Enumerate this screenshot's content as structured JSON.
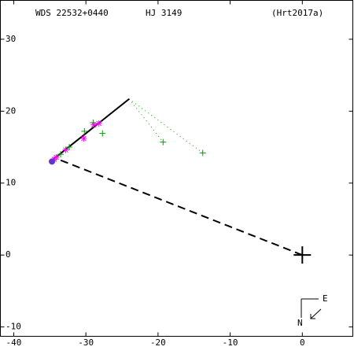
{
  "chart_data": {
    "type": "scatter",
    "title": "WDS 22532+0440",
    "subtitle": "HJ 3149",
    "reference": "(Hrt2017a)",
    "xlim": [
      -41.85,
      7
    ],
    "ylim": [
      -11.3,
      35.4
    ],
    "xticks": [
      -40,
      -30,
      -20,
      -10,
      0
    ],
    "yticks": [
      -10,
      0,
      10,
      20,
      30
    ],
    "orbit": {
      "color": "#000000",
      "x": [
        -34.9,
        -24.0
      ],
      "y": [
        13.0,
        21.7
      ]
    },
    "node_line": {
      "color": "#000000",
      "x": [
        0,
        -33.8
      ],
      "y": [
        0,
        13.3
      ]
    },
    "primary": {
      "color": "#000000",
      "x": 0,
      "y": 0
    },
    "series": [
      {
        "marker": "plus",
        "color": "#00a000",
        "x": [
          -27.7,
          -19.3,
          -13.8,
          -30.2,
          -33.5,
          -32.3,
          -29.0
        ],
        "y": [
          16.9,
          15.7,
          14.2,
          17.2,
          14.0,
          15.0,
          18.4
        ]
      },
      {
        "marker": "star",
        "color": "#ff00ff",
        "x": [
          -28.9,
          -28.2,
          -30.3,
          -32.8,
          -34.1,
          -34.4
        ],
        "y": [
          18.1,
          18.3,
          16.2,
          14.6,
          13.6,
          13.3
        ]
      },
      {
        "marker": "circle",
        "color": "#6633cc",
        "x": [
          -34.7
        ],
        "y": [
          13.0
        ]
      }
    ],
    "compass": {
      "east": "E",
      "north": "N"
    }
  }
}
